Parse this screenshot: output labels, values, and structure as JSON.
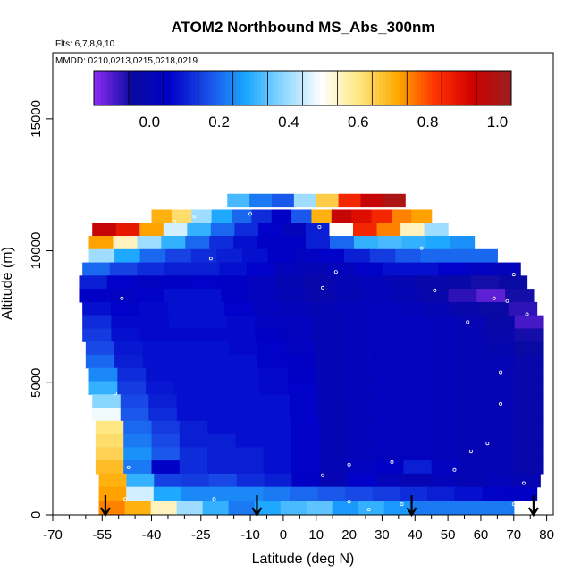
{
  "chart_data": {
    "type": "heatmap",
    "title": "ATOM2 Northbound MS_Abs_300nm",
    "subtitle": "Flts: 6,7,8,9,10",
    "annotation": "MMDD: 0210,0213,0215,0218,0219",
    "xlabel": "Latitude (deg N)",
    "ylabel": "Altitude (m)",
    "xlim": [
      -70,
      82
    ],
    "ylim": [
      0,
      17500
    ],
    "x_ticks": [
      -70,
      -55,
      -40,
      -25,
      -10,
      0,
      10,
      20,
      30,
      40,
      50,
      60,
      70,
      80
    ],
    "x_tick_labels": [
      "-70",
      "-55",
      "-40",
      "-25",
      "-10",
      "0",
      "10",
      "20",
      "30",
      "40",
      "50",
      "60",
      "70",
      "80"
    ],
    "x_minor_ticks": [
      -65,
      -60,
      -50,
      -45,
      -35,
      -30,
      -20,
      -15,
      -5,
      5,
      15,
      25,
      35,
      45,
      55,
      65,
      75
    ],
    "y_ticks": [
      0,
      5000,
      10000,
      15000
    ],
    "y_tick_labels": [
      "0",
      "5000",
      "10000",
      "15000"
    ],
    "colorbar": {
      "range": [
        -0.16,
        1.04
      ],
      "tick_values": [
        0.0,
        0.2,
        0.4,
        0.6,
        0.8,
        1.0
      ],
      "tick_labels": [
        "0.0",
        "0.2",
        "0.4",
        "0.6",
        "0.8",
        "1.0"
      ],
      "colors": [
        "#8e2cf5",
        "#0a0aa0",
        "#0000c8",
        "#1a4ee8",
        "#1aa6ff",
        "#8fd8ff",
        "#ffffff",
        "#ffe680",
        "#ffaa00",
        "#ff3300",
        "#d00000",
        "#982020"
      ]
    },
    "arrows_at_latitude": [
      -54,
      -8,
      39,
      76
    ],
    "layers": [
      {
        "alt": 11900,
        "lat": [
          -17,
          37
        ],
        "values": [
          0.32,
          0.22,
          0.18,
          0.4,
          0.65,
          0.85,
          0.95,
          1.0
        ]
      },
      {
        "alt": 11300,
        "lat": [
          -40,
          45
        ],
        "values": [
          0.7,
          0.62,
          0.4,
          0.28,
          0.2,
          0.12,
          0.05,
          0.18,
          0.7,
          0.95,
          0.9,
          0.85,
          0.75,
          0.72
        ]
      },
      {
        "alt": 10800,
        "lat": [
          -58,
          50
        ],
        "values": [
          0.95,
          0.88,
          0.72,
          0.45,
          0.3,
          0.2,
          0.12,
          0.06,
          0.02,
          0.1,
          0.5,
          0.85,
          0.75,
          0.55,
          0.4
        ]
      },
      {
        "alt": 10300,
        "lat": [
          -59,
          58
        ],
        "values": [
          0.72,
          0.55,
          0.4,
          0.3,
          0.2,
          0.12,
          0.08,
          0.05,
          0.05,
          0.1,
          0.2,
          0.3,
          0.32,
          0.3,
          0.28,
          0.25
        ]
      },
      {
        "alt": 9800,
        "lat": [
          -59,
          65
        ],
        "values": [
          0.4,
          0.28,
          0.2,
          0.15,
          0.12,
          0.1,
          0.08,
          0.05,
          0.04,
          0.06,
          0.1,
          0.14,
          0.18,
          0.2,
          0.2,
          0.2
        ]
      },
      {
        "alt": 9300,
        "lat": [
          -61,
          72
        ],
        "values": [
          0.2,
          0.15,
          0.12,
          0.1,
          0.1,
          0.08,
          0.06,
          0.02,
          0.0,
          0.03,
          0.06,
          0.08,
          0.08,
          0.06,
          0.04,
          0.02
        ]
      },
      {
        "alt": 8800,
        "lat": [
          -62,
          74
        ],
        "values": [
          0.1,
          0.06,
          0.04,
          0.05,
          0.06,
          0.05,
          0.03,
          0.0,
          -0.02,
          0.0,
          0.02,
          0.0,
          -0.02,
          -0.03,
          -0.06,
          -0.04
        ]
      },
      {
        "alt": 8300,
        "lat": [
          -62,
          76
        ],
        "values": [
          0.05,
          0.04,
          0.06,
          0.08,
          0.08,
          0.05,
          0.03,
          0.0,
          -0.02,
          0.0,
          0.02,
          0.0,
          -0.02,
          -0.08,
          -0.12,
          -0.06
        ]
      },
      {
        "alt": 7800,
        "lat": [
          -61,
          77
        ],
        "values": [
          0.08,
          0.06,
          0.07,
          0.08,
          0.08,
          0.06,
          0.03,
          0.02,
          0.0,
          0.02,
          0.03,
          0.02,
          0.0,
          -0.02,
          -0.04,
          -0.08
        ]
      },
      {
        "alt": 7300,
        "lat": [
          -61,
          79
        ],
        "values": [
          0.12,
          0.07,
          0.07,
          0.08,
          0.08,
          0.07,
          0.04,
          0.03,
          0.0,
          0.02,
          0.03,
          0.03,
          0.02,
          0.0,
          -0.03,
          -0.1
        ]
      },
      {
        "alt": 6800,
        "lat": [
          -61,
          79
        ],
        "values": [
          0.14,
          0.08,
          0.07,
          0.07,
          0.07,
          0.07,
          0.05,
          0.03,
          0.0,
          0.02,
          0.03,
          0.03,
          0.02,
          0.0,
          -0.02,
          -0.06
        ]
      },
      {
        "alt": 6300,
        "lat": [
          -60,
          79
        ],
        "values": [
          0.16,
          0.09,
          0.08,
          0.08,
          0.08,
          0.07,
          0.06,
          0.04,
          0.0,
          0.02,
          0.03,
          0.03,
          0.02,
          0.0,
          -0.01,
          -0.04
        ]
      },
      {
        "alt": 5800,
        "lat": [
          -60,
          79
        ],
        "values": [
          0.2,
          0.1,
          0.08,
          0.08,
          0.08,
          0.08,
          0.06,
          0.05,
          0.0,
          0.02,
          0.03,
          0.03,
          0.02,
          0.0,
          0.0,
          -0.02
        ]
      },
      {
        "alt": 5300,
        "lat": [
          -59,
          79
        ],
        "values": [
          0.24,
          0.12,
          0.08,
          0.08,
          0.08,
          0.08,
          0.07,
          0.05,
          0.0,
          0.02,
          0.03,
          0.03,
          0.02,
          0.0,
          0.0,
          -0.02
        ]
      },
      {
        "alt": 4800,
        "lat": [
          -59,
          79
        ],
        "values": [
          0.3,
          0.14,
          0.09,
          0.08,
          0.08,
          0.08,
          0.07,
          0.06,
          0.0,
          0.02,
          0.03,
          0.03,
          0.02,
          0.0,
          0.0,
          -0.02
        ]
      },
      {
        "alt": 4300,
        "lat": [
          -58,
          79
        ],
        "values": [
          0.38,
          0.16,
          0.1,
          0.08,
          0.08,
          0.08,
          0.08,
          0.06,
          0.0,
          0.02,
          0.03,
          0.03,
          0.02,
          0.0,
          0.0,
          -0.02
        ]
      },
      {
        "alt": 3800,
        "lat": [
          -58,
          79
        ],
        "values": [
          0.48,
          0.18,
          0.12,
          0.08,
          0.08,
          0.08,
          0.08,
          0.06,
          0.0,
          0.02,
          0.03,
          0.03,
          0.02,
          0.0,
          0.0,
          -0.02
        ]
      },
      {
        "alt": 3300,
        "lat": [
          -57,
          79
        ],
        "values": [
          0.6,
          0.2,
          0.14,
          0.1,
          0.08,
          0.08,
          0.08,
          0.06,
          0.0,
          0.02,
          0.03,
          0.03,
          0.02,
          0.0,
          0.0,
          -0.02
        ]
      },
      {
        "alt": 2800,
        "lat": [
          -57,
          79
        ],
        "values": [
          0.62,
          0.22,
          0.16,
          0.1,
          0.1,
          0.08,
          0.08,
          0.06,
          0.0,
          0.02,
          0.03,
          0.03,
          0.02,
          0.0,
          0.0,
          -0.02
        ]
      },
      {
        "alt": 2300,
        "lat": [
          -57,
          79
        ],
        "values": [
          0.64,
          0.25,
          0.18,
          0.12,
          0.1,
          0.1,
          0.08,
          0.06,
          0.0,
          0.02,
          0.03,
          0.03,
          0.02,
          0.0,
          0.0,
          -0.02
        ]
      },
      {
        "alt": 1800,
        "lat": [
          -57,
          79
        ],
        "values": [
          0.68,
          0.22,
          0.05,
          0.12,
          0.1,
          0.1,
          0.08,
          0.06,
          0.0,
          0.04,
          0.05,
          0.1,
          0.04,
          0.0,
          0.0,
          -0.02
        ]
      },
      {
        "alt": 1300,
        "lat": [
          -56,
          78
        ],
        "values": [
          0.7,
          0.3,
          0.15,
          0.14,
          0.16,
          0.12,
          0.1,
          0.05,
          0.0,
          0.06,
          0.02,
          0.0,
          0.02,
          0.0,
          0.02,
          0.0
        ]
      },
      {
        "alt": 800,
        "lat": [
          -56,
          77
        ],
        "values": [
          0.72,
          0.45,
          0.28,
          0.24,
          0.24,
          0.24,
          0.22,
          0.2,
          0.18,
          0.16,
          0.14,
          0.12,
          0.1,
          0.08,
          0.06,
          0.05
        ]
      },
      {
        "alt": 250,
        "lat": [
          -56,
          70
        ],
        "values": [
          0.75,
          0.7,
          0.55,
          0.4,
          0.3,
          0.22,
          0.28,
          0.32,
          0.34,
          0.26,
          0.3,
          0.26,
          0.22,
          0.22,
          0.22,
          0.22
        ]
      }
    ],
    "sample_points": [
      {
        "lat": -27,
        "alt": 11300
      },
      {
        "lat": -33,
        "alt": 11100
      },
      {
        "lat": -10,
        "alt": 11400
      },
      {
        "lat": 11,
        "alt": 10900
      },
      {
        "lat": -22,
        "alt": 9700
      },
      {
        "lat": 42,
        "alt": 10100
      },
      {
        "lat": 16,
        "alt": 9200
      },
      {
        "lat": 12,
        "alt": 8600
      },
      {
        "lat": 46,
        "alt": 8500
      },
      {
        "lat": -49,
        "alt": 8200
      },
      {
        "lat": 64,
        "alt": 8200
      },
      {
        "lat": 68,
        "alt": 8100
      },
      {
        "lat": 70,
        "alt": 9100
      },
      {
        "lat": 74,
        "alt": 7600
      },
      {
        "lat": 56,
        "alt": 7300
      },
      {
        "lat": 66,
        "alt": 5400
      },
      {
        "lat": -51,
        "alt": 4600
      },
      {
        "lat": 66,
        "alt": 4200
      },
      {
        "lat": 62,
        "alt": 2700
      },
      {
        "lat": 57,
        "alt": 2400
      },
      {
        "lat": 33,
        "alt": 2000
      },
      {
        "lat": 20,
        "alt": 1900
      },
      {
        "lat": -47,
        "alt": 1800
      },
      {
        "lat": 12,
        "alt": 1500
      },
      {
        "lat": 52,
        "alt": 1700
      },
      {
        "lat": 73,
        "alt": 1200
      },
      {
        "lat": -21,
        "alt": 600
      },
      {
        "lat": -48,
        "alt": 600
      },
      {
        "lat": 20,
        "alt": 500
      },
      {
        "lat": 26,
        "alt": 200
      },
      {
        "lat": 36,
        "alt": 400
      },
      {
        "lat": 70,
        "alt": 400
      }
    ]
  }
}
